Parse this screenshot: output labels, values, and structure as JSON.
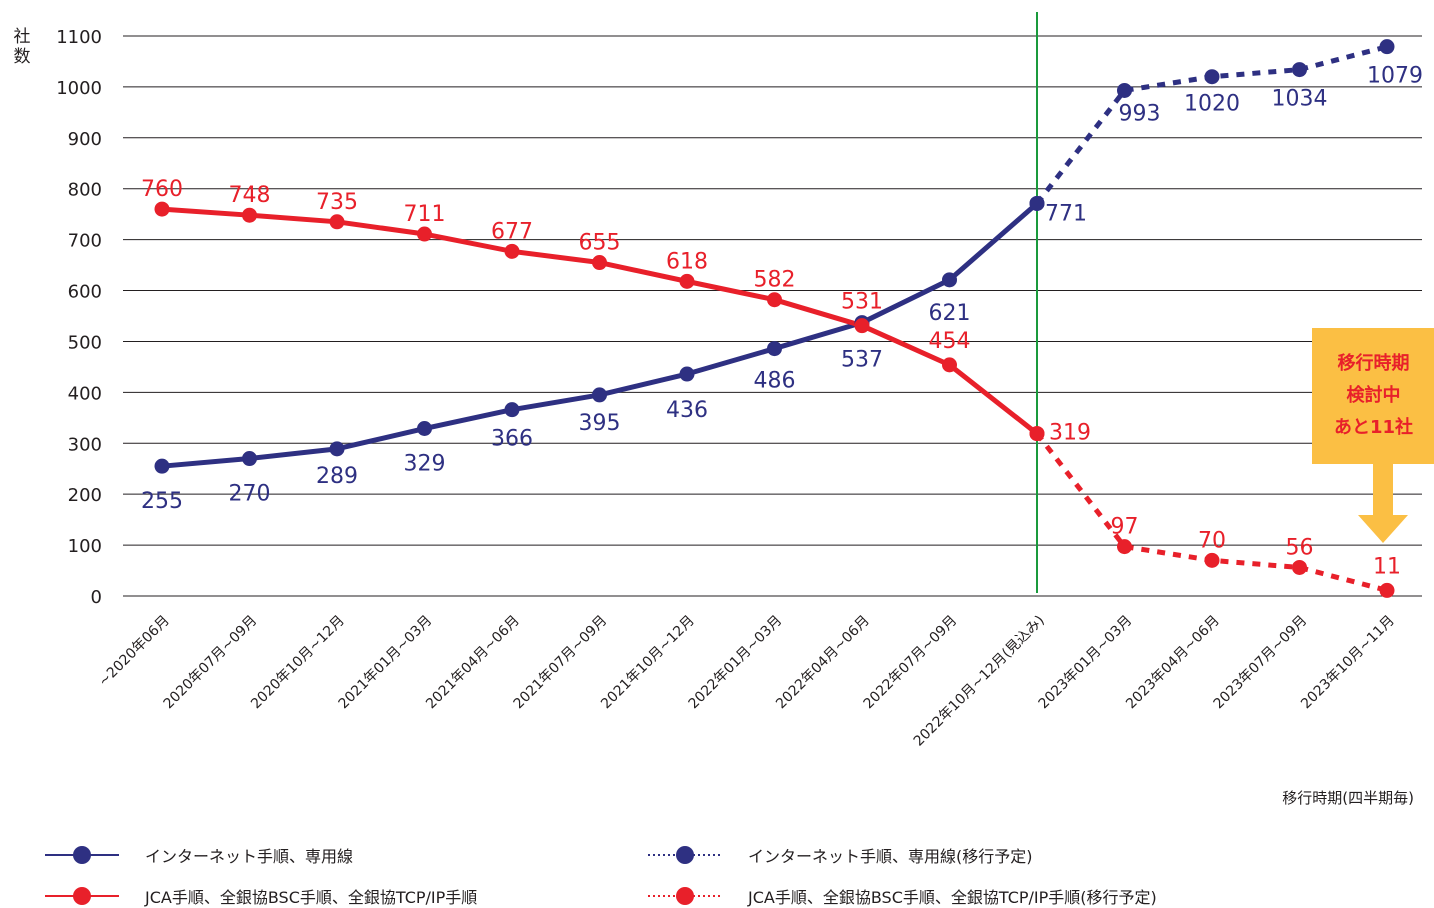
{
  "chart_data": {
    "type": "line",
    "ylabel": "社数",
    "xlabel": "移行時期(四半期毎)",
    "ylim": [
      0,
      1100
    ],
    "yticks": [
      "0",
      "100",
      "200",
      "300",
      "400",
      "500",
      "600",
      "700",
      "800",
      "900",
      "1000",
      "1100"
    ],
    "categories": [
      "~2020年06月",
      "2020年07月~09月",
      "2020年10月~12月",
      "2021年01月~03月",
      "2021年04月~06月",
      "2021年07月~09月",
      "2021年10月~12月",
      "2022年01月~03月",
      "2022年04月~06月",
      "2022年07月~09月",
      "2022年10月~12月(見込み)",
      "2023年01月~03月",
      "2023年04月~06月",
      "2023年07月~09月",
      "2023年10月~11月"
    ],
    "series": [
      {
        "name": "インターネット手順、専用線",
        "color": "#2e3082",
        "values": [
          255,
          270,
          289,
          329,
          366,
          395,
          436,
          486,
          537,
          621,
          771,
          null,
          null,
          null,
          null
        ]
      },
      {
        "name": "インターネット手順、専用線(移行予定)",
        "color": "#2e3082",
        "style": "dotted",
        "values": [
          null,
          null,
          null,
          null,
          null,
          null,
          null,
          null,
          null,
          null,
          771,
          993,
          1020,
          1034,
          1079
        ]
      },
      {
        "name": "JCA手順、全銀協BSC手順、全銀協TCP/IP手順",
        "color": "#e8202a",
        "values": [
          760,
          748,
          735,
          711,
          677,
          655,
          618,
          582,
          531,
          454,
          319,
          null,
          null,
          null,
          null
        ]
      },
      {
        "name": "JCA手順、全銀協BSC手順、全銀協TCP/IP手順(移行予定)",
        "color": "#e8202a",
        "style": "dotted",
        "values": [
          null,
          null,
          null,
          null,
          null,
          null,
          null,
          null,
          null,
          null,
          319,
          97,
          70,
          56,
          11
        ]
      }
    ],
    "blue_labels": [
      "255",
      "270",
      "289",
      "329",
      "366",
      "395",
      "436",
      "486",
      "537",
      "621",
      "771",
      "993",
      "1020",
      "1034",
      "1079"
    ],
    "red_labels": [
      "760",
      "748",
      "735",
      "711",
      "677",
      "655",
      "618",
      "582",
      "531",
      "454",
      "319",
      "97",
      "70",
      "56",
      "11"
    ],
    "divider_after_category": "2022年10月~12月(見込み)",
    "divider_color": "#1a9a3c",
    "grid": "horizontal",
    "legend_position": "bottom"
  },
  "callout": {
    "lines": [
      "移行時期",
      "検討中",
      "あと11社"
    ],
    "bg": "#fbbf44",
    "text_color": "#e8202a"
  },
  "legend": {
    "item1": "インターネット手順、専用線",
    "item2": "インターネット手順、専用線(移行予定)",
    "item3": "JCA手順、全銀協BSC手順、全銀協TCP/IP手順",
    "item4": "JCA手順、全銀協BSC手順、全銀協TCP/IP手順(移行予定)"
  }
}
